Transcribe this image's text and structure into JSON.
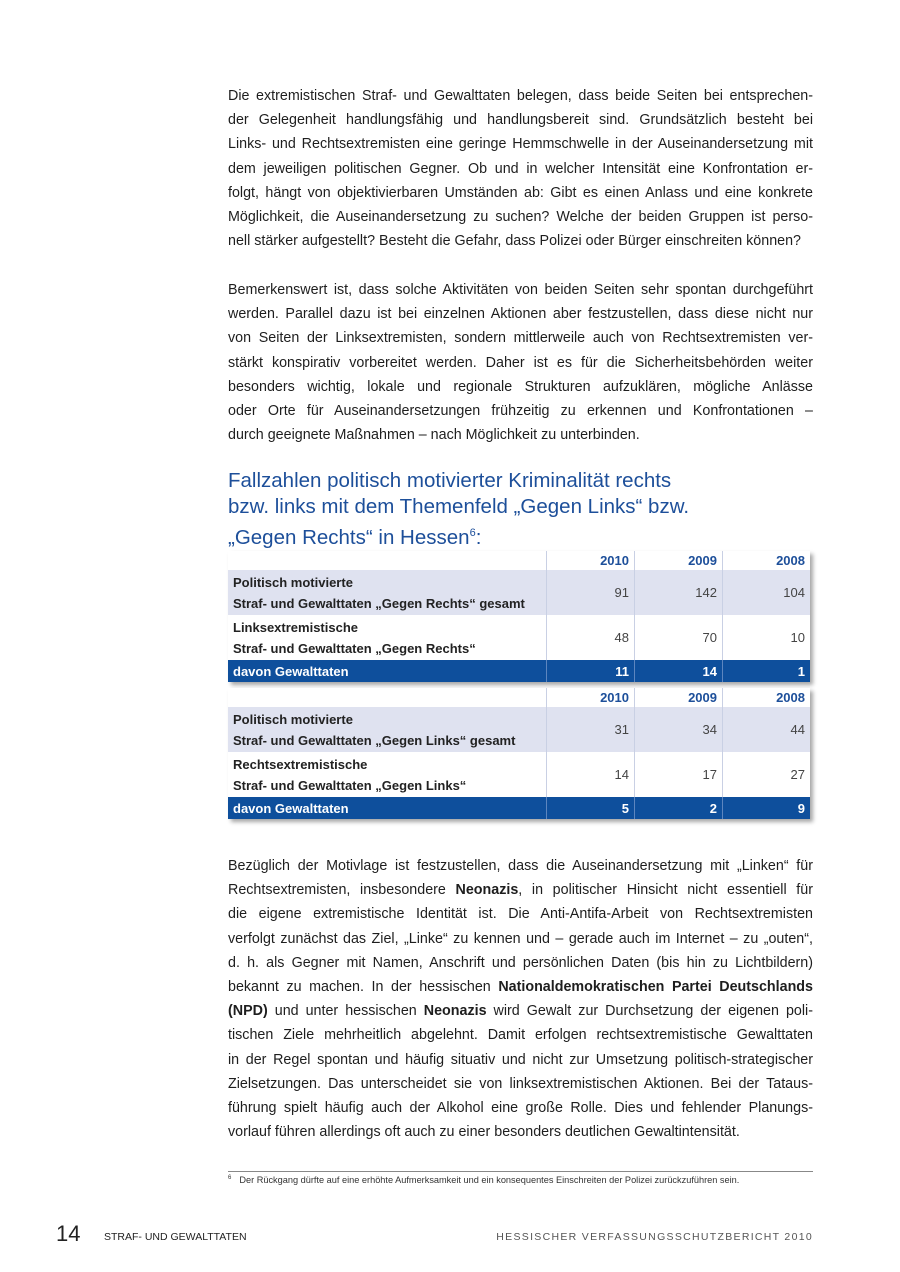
{
  "paragraph1": [
    [
      {
        "t": "Die extremistischen Straf- und Gewalttaten belegen, dass beide Seiten bei entsprechen-"
      }
    ],
    [
      {
        "t": "der Gelegenheit handlungsfähig und handlungsbereit sind. Grundsätzlich besteht bei"
      }
    ],
    [
      {
        "t": "Links- und Rechtsextremisten eine geringe Hemmschwelle in der Auseinandersetzung mit"
      }
    ],
    [
      {
        "t": "dem jeweiligen politischen Gegner. Ob und in welcher Intensität eine Konfrontation er-"
      }
    ],
    [
      {
        "t": "folgt, hängt von objektivierbaren Umständen ab: Gibt es einen Anlass und eine konkrete"
      }
    ],
    [
      {
        "t": "Möglichkeit, die Auseinandersetzung zu suchen? Welche der beiden Gruppen ist perso-"
      }
    ],
    [
      {
        "t": "nell stärker aufgestellt? Besteht die Gefahr, dass Polizei oder Bürger einschreiten können?"
      }
    ]
  ],
  "paragraph2": [
    [
      {
        "t": "Bemerkenswert ist, dass solche Aktivitäten von beiden Seiten sehr spontan durchgeführt"
      }
    ],
    [
      {
        "t": "werden. Parallel dazu ist bei einzelnen Aktionen aber festzustellen, dass diese nicht nur"
      }
    ],
    [
      {
        "t": "von Seiten der Linksextremisten, sondern mittlerweile auch von Rechtsextremisten ver-"
      }
    ],
    [
      {
        "t": "stärkt konspirativ vorbereitet werden. Daher ist es für die Sicherheitsbehörden weiter"
      }
    ],
    [
      {
        "t": "besonders wichtig, lokale und regionale Strukturen aufzuklären, mögliche Anlässe"
      }
    ],
    [
      {
        "t": "oder Orte für Auseinandersetzungen frühzeitig zu erkennen und Konfrontationen –"
      }
    ],
    [
      {
        "t": "durch geeignete Maßnahmen – nach Möglichkeit zu unterbinden."
      }
    ]
  ],
  "heading": {
    "line1": "Fallzahlen politisch motivierter Kriminalität rechts",
    "line2": "bzw. links mit dem Themenfeld „Gegen Links“ bzw.",
    "line3": "„Gegen Rechts“ in Hessen",
    "sup": "6",
    "colon": ":"
  },
  "tables": [
    {
      "years": [
        "2010",
        "2009",
        "2008"
      ],
      "rows": [
        {
          "label1": "Politisch motivierte",
          "label2": "Straf- und Gewalttaten „Gegen Rechts“ gesamt",
          "values": [
            "91",
            "142",
            "104"
          ]
        },
        {
          "label1": "Linksextremistische",
          "label2": "Straf- und Gewalttaten „Gegen Rechts“",
          "values": [
            "48",
            "70",
            "10"
          ]
        }
      ],
      "summary": {
        "label": "davon Gewalttaten",
        "values": [
          "11",
          "14",
          "1"
        ]
      }
    },
    {
      "years": [
        "2010",
        "2009",
        "2008"
      ],
      "rows": [
        {
          "label1": "Politisch motivierte",
          "label2": "Straf- und Gewalttaten „Gegen Links“ gesamt",
          "values": [
            "31",
            "34",
            "44"
          ]
        },
        {
          "label1": "Rechtsextremistische",
          "label2": "Straf- und Gewalttaten „Gegen Links“",
          "values": [
            "14",
            "17",
            "27"
          ]
        }
      ],
      "summary": {
        "label": "davon Gewalttaten",
        "values": [
          "5",
          "2",
          "9"
        ]
      }
    }
  ],
  "paragraph3": [
    [
      {
        "t": "Bezüglich der Motivlage ist festzustellen, dass die Auseinandersetzung mit „Linken“ für"
      }
    ],
    [
      {
        "t": "Rechtsextremisten, insbesondere "
      },
      {
        "t": "Neonazis",
        "b": true
      },
      {
        "t": ", in politischer Hinsicht nicht essentiell für"
      }
    ],
    [
      {
        "t": "die eigene extremistische Identität ist. Die Anti-Antifa-Arbeit von Rechtsextremisten"
      }
    ],
    [
      {
        "t": "verfolgt zunächst das Ziel, „Linke“ zu kennen und – gerade auch im Internet – zu „outen“,"
      }
    ],
    [
      {
        "t": "d. h. als Gegner mit Namen, Anschrift und persönlichen Daten (bis hin zu Lichtbildern)"
      }
    ],
    [
      {
        "t": "bekannt zu machen. In der hessischen "
      },
      {
        "t": "Nationaldemokratischen Partei Deutschlands",
        "b": true
      }
    ],
    [
      {
        "t": "(NPD)",
        "b": true
      },
      {
        "t": " und unter hessischen "
      },
      {
        "t": "Neonazis",
        "b": true
      },
      {
        "t": " wird Gewalt zur Durchsetzung der eigenen poli-"
      }
    ],
    [
      {
        "t": "tischen Ziele mehrheitlich abgelehnt. Damit erfolgen rechtsextremistische Gewalttaten"
      }
    ],
    [
      {
        "t": "in der Regel spontan und häufig situativ und nicht zur Umsetzung politisch-strategischer"
      }
    ],
    [
      {
        "t": "Zielsetzungen. Das unterscheidet sie von linksextremistischen Aktionen. Bei der Tataus-"
      }
    ],
    [
      {
        "t": "führung spielt häufig auch der Alkohol eine große Rolle. Dies und fehlender Planungs-"
      }
    ],
    [
      {
        "t": "vorlauf führen allerdings oft auch zu einer besonders deutlichen Gewaltintensität."
      }
    ]
  ],
  "footnote": {
    "number": "6",
    "text": "Der Rückgang dürfte auf eine erhöhte Aufmerksamkeit und ein konsequentes Einschreiten der Polizei zurückzuführen sein."
  },
  "footer": {
    "page_number": "14",
    "section": "STRAF- UND GEWALTTATEN",
    "report_title": "HESSISCHER VERFASSUNGSSCHUTZBERICHT 2010"
  },
  "colors": {
    "accent": "#1d4f9a",
    "table_summary": "#0e4f9c",
    "row_shade": "#dfe2f0"
  }
}
